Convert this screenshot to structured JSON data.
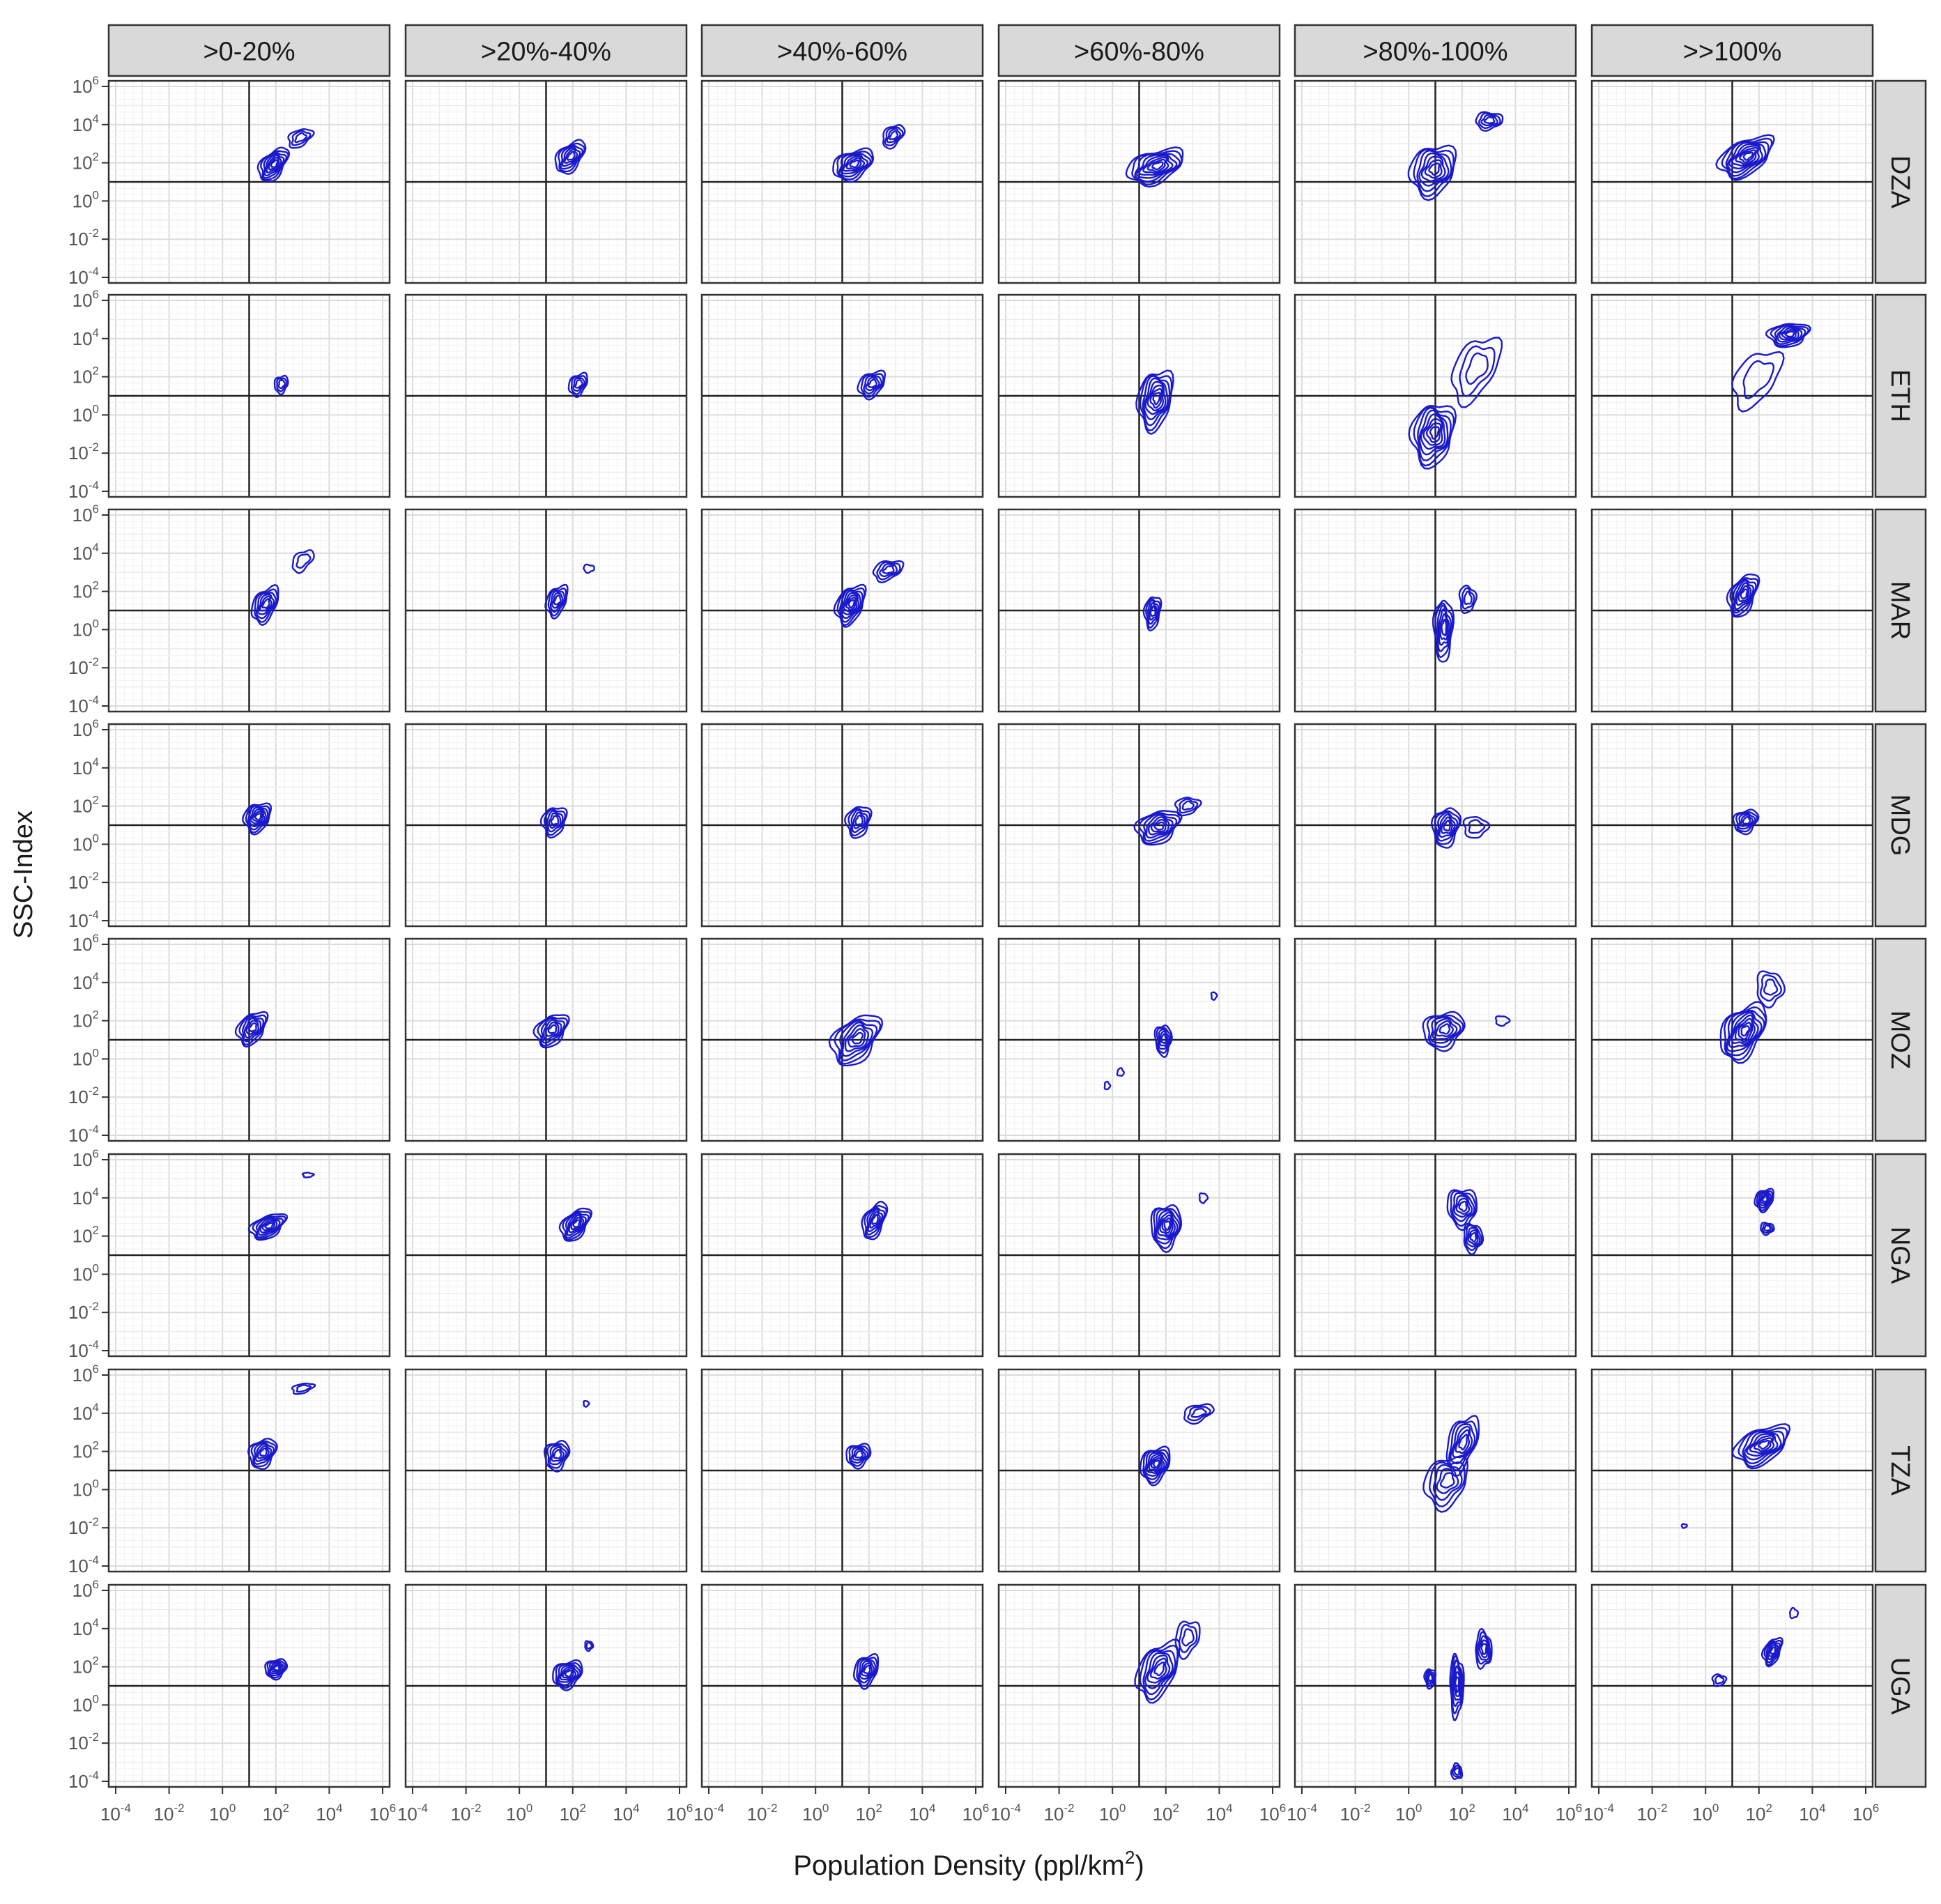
{
  "chart_data": {
    "type": "contour-density-facet-grid",
    "xlabel": {
      "main": "Population Density (ppl/km",
      "sup": "2",
      "close": ")"
    },
    "ylabel": "SSC-Index",
    "scale": "log10",
    "xlim_exp": [
      -4,
      6
    ],
    "ylim_exp": [
      -4,
      6
    ],
    "tick_exponents": [
      -4,
      -2,
      0,
      2,
      4,
      6
    ],
    "tick_base": "10",
    "reference_lines": {
      "x": 10,
      "y": 10
    },
    "grid": true,
    "contour_color": "#1a1acc",
    "columns": [
      ">0-20%",
      ">20%-40%",
      ">40%-60%",
      ">60%-80%",
      ">80%-100%",
      ">>100%"
    ],
    "rows": [
      "DZA",
      "ETH",
      "MAR",
      "MDG",
      "MOZ",
      "NGA",
      "TZA",
      "UGA"
    ],
    "clusters": [
      [
        [
          {
            "x": 1.9,
            "y": 1.9,
            "sx": 0.55,
            "sy": 0.75,
            "r": 0.65,
            "lv": 7
          },
          {
            "x": 2.9,
            "y": 3.3,
            "sx": 0.45,
            "sy": 0.45,
            "r": 0.5,
            "lv": 3
          }
        ],
        [
          {
            "x": 1.9,
            "y": 2.3,
            "sx": 0.55,
            "sy": 0.75,
            "r": 0.6,
            "lv": 6
          }
        ],
        [
          {
            "x": 1.4,
            "y": 1.9,
            "sx": 0.75,
            "sy": 0.75,
            "r": 0.45,
            "lv": 7
          },
          {
            "x": 2.9,
            "y": 3.4,
            "sx": 0.4,
            "sy": 0.55,
            "r": 0.5,
            "lv": 4
          }
        ],
        [
          {
            "x": 1.6,
            "y": 1.8,
            "sx": 1.05,
            "sy": 0.85,
            "r": 0.5,
            "lv": 8
          }
        ],
        [
          {
            "x": 0.9,
            "y": 1.6,
            "sx": 0.85,
            "sy": 1.3,
            "r": 0.25,
            "lv": 7
          },
          {
            "x": 3.0,
            "y": 4.2,
            "sx": 0.5,
            "sy": 0.45,
            "r": 0.1,
            "lv": 4
          }
        ],
        [
          {
            "x": 1.5,
            "y": 2.3,
            "sx": 1.0,
            "sy": 0.95,
            "r": 0.6,
            "lv": 9
          }
        ]
      ],
      [
        [
          {
            "x": 2.2,
            "y": 1.6,
            "sx": 0.25,
            "sy": 0.45,
            "r": 0.2,
            "lv": 3
          }
        ],
        [
          {
            "x": 2.2,
            "y": 1.6,
            "sx": 0.35,
            "sy": 0.55,
            "r": 0.4,
            "lv": 4
          }
        ],
        [
          {
            "x": 2.1,
            "y": 1.6,
            "sx": 0.5,
            "sy": 0.65,
            "r": 0.4,
            "lv": 5
          }
        ],
        [
          {
            "x": 1.6,
            "y": 0.8,
            "sx": 0.65,
            "sy": 1.5,
            "r": 0.3,
            "lv": 8
          }
        ],
        [
          {
            "x": 0.9,
            "y": -1.0,
            "sx": 0.8,
            "sy": 1.6,
            "r": 0.2,
            "lv": 8
          },
          {
            "x": 2.5,
            "y": 2.4,
            "sx": 0.9,
            "sy": 1.5,
            "r": 0.6,
            "lv": 3
          }
        ],
        [
          {
            "x": 3.1,
            "y": 4.2,
            "sx": 0.75,
            "sy": 0.6,
            "r": 0.2,
            "lv": 7
          },
          {
            "x": 1.9,
            "y": 1.9,
            "sx": 0.9,
            "sy": 1.3,
            "r": 0.6,
            "lv": 2
          }
        ]
      ],
      [
        [
          {
            "x": 1.6,
            "y": 1.3,
            "sx": 0.5,
            "sy": 0.85,
            "r": 0.55,
            "lv": 6
          },
          {
            "x": 3.0,
            "y": 3.6,
            "sx": 0.4,
            "sy": 0.5,
            "r": 0.6,
            "lv": 2
          }
        ],
        [
          {
            "x": 1.4,
            "y": 1.5,
            "sx": 0.4,
            "sy": 0.75,
            "r": 0.45,
            "lv": 5
          },
          {
            "x": 2.6,
            "y": 3.2,
            "sx": 0.2,
            "sy": 0.2,
            "r": 0.0,
            "lv": 1
          }
        ],
        [
          {
            "x": 1.3,
            "y": 1.3,
            "sx": 0.55,
            "sy": 0.95,
            "r": 0.45,
            "lv": 8
          },
          {
            "x": 2.7,
            "y": 3.1,
            "sx": 0.55,
            "sy": 0.5,
            "r": 0.4,
            "lv": 4
          }
        ],
        [
          {
            "x": 1.5,
            "y": 0.9,
            "sx": 0.3,
            "sy": 0.85,
            "r": 0.2,
            "lv": 5
          }
        ],
        [
          {
            "x": 1.3,
            "y": 0.0,
            "sx": 0.35,
            "sy": 1.6,
            "r": 0.05,
            "lv": 6
          },
          {
            "x": 2.2,
            "y": 1.6,
            "sx": 0.3,
            "sy": 0.7,
            "r": 0.0,
            "lv": 3
          }
        ],
        [
          {
            "x": 1.4,
            "y": 1.8,
            "sx": 0.55,
            "sy": 1.0,
            "r": 0.55,
            "lv": 7
          }
        ]
      ],
      [
        [
          {
            "x": 1.3,
            "y": 1.4,
            "sx": 0.5,
            "sy": 0.75,
            "r": 0.25,
            "lv": 7
          }
        ],
        [
          {
            "x": 1.3,
            "y": 1.2,
            "sx": 0.45,
            "sy": 0.75,
            "r": 0.2,
            "lv": 5
          }
        ],
        [
          {
            "x": 1.6,
            "y": 1.2,
            "sx": 0.45,
            "sy": 0.8,
            "r": 0.2,
            "lv": 5
          }
        ],
        [
          {
            "x": 1.7,
            "y": 0.9,
            "sx": 0.8,
            "sy": 0.85,
            "r": 0.35,
            "lv": 7
          },
          {
            "x": 2.8,
            "y": 2.0,
            "sx": 0.45,
            "sy": 0.45,
            "r": 0.2,
            "lv": 3
          }
        ],
        [
          {
            "x": 1.4,
            "y": 0.9,
            "sx": 0.5,
            "sy": 1.0,
            "r": 0.2,
            "lv": 6
          },
          {
            "x": 2.5,
            "y": 0.9,
            "sx": 0.45,
            "sy": 0.55,
            "r": 0.0,
            "lv": 2
          }
        ],
        [
          {
            "x": 1.5,
            "y": 1.2,
            "sx": 0.45,
            "sy": 0.6,
            "r": 0.25,
            "lv": 5
          }
        ]
      ],
      [
        [
          {
            "x": 1.1,
            "y": 1.6,
            "sx": 0.55,
            "sy": 0.8,
            "r": 0.45,
            "lv": 6
          }
        ],
        [
          {
            "x": 1.2,
            "y": 1.5,
            "sx": 0.6,
            "sy": 0.8,
            "r": 0.4,
            "lv": 6
          }
        ],
        [
          {
            "x": 1.5,
            "y": 1.0,
            "sx": 0.9,
            "sy": 1.2,
            "r": 0.5,
            "lv": 7
          }
        ],
        [
          {
            "x": 1.9,
            "y": 1.0,
            "sx": 0.3,
            "sy": 0.8,
            "r": 0.0,
            "lv": 5
          },
          {
            "x": 3.8,
            "y": 3.3,
            "sx": 0.1,
            "sy": 0.2,
            "r": 0.0,
            "lv": 1
          },
          {
            "x": -0.2,
            "y": -1.4,
            "sx": 0.1,
            "sy": 0.2,
            "r": 0.0,
            "lv": 1
          },
          {
            "x": 0.3,
            "y": -0.7,
            "sx": 0.12,
            "sy": 0.2,
            "r": 0.0,
            "lv": 1
          }
        ],
        [
          {
            "x": 1.3,
            "y": 1.5,
            "sx": 0.75,
            "sy": 0.95,
            "r": 0.2,
            "lv": 6
          },
          {
            "x": 3.5,
            "y": 2.0,
            "sx": 0.25,
            "sy": 0.25,
            "r": 0.0,
            "lv": 1
          }
        ],
        [
          {
            "x": 1.4,
            "y": 1.4,
            "sx": 0.85,
            "sy": 1.35,
            "r": 0.5,
            "lv": 9
          },
          {
            "x": 2.4,
            "y": 3.7,
            "sx": 0.5,
            "sy": 0.9,
            "r": 0.0,
            "lv": 3
          }
        ]
      ],
      [
        [
          {
            "x": 1.7,
            "y": 2.5,
            "sx": 0.65,
            "sy": 0.6,
            "r": 0.55,
            "lv": 7
          },
          {
            "x": 3.2,
            "y": 5.2,
            "sx": 0.2,
            "sy": 0.12,
            "r": 0.0,
            "lv": 1
          }
        ],
        [
          {
            "x": 2.1,
            "y": 2.6,
            "sx": 0.55,
            "sy": 0.75,
            "r": 0.6,
            "lv": 7
          }
        ],
        [
          {
            "x": 2.2,
            "y": 2.8,
            "sx": 0.45,
            "sy": 0.85,
            "r": 0.6,
            "lv": 6
          }
        ],
        [
          {
            "x": 2.0,
            "y": 2.5,
            "sx": 0.55,
            "sy": 1.15,
            "r": 0.1,
            "lv": 8
          },
          {
            "x": 3.4,
            "y": 4.0,
            "sx": 0.15,
            "sy": 0.25,
            "r": 0.0,
            "lv": 1
          }
        ],
        [
          {
            "x": 2.0,
            "y": 3.5,
            "sx": 0.55,
            "sy": 1.0,
            "r": 0.0,
            "lv": 6
          },
          {
            "x": 2.4,
            "y": 1.9,
            "sx": 0.35,
            "sy": 0.75,
            "r": 0.0,
            "lv": 5
          }
        ],
        [
          {
            "x": 2.2,
            "y": 3.9,
            "sx": 0.35,
            "sy": 0.55,
            "r": 0.3,
            "lv": 6
          },
          {
            "x": 2.3,
            "y": 2.4,
            "sx": 0.25,
            "sy": 0.3,
            "r": 0.0,
            "lv": 3
          }
        ]
      ],
      [
        [
          {
            "x": 1.5,
            "y": 1.9,
            "sx": 0.5,
            "sy": 0.75,
            "r": 0.3,
            "lv": 6
          },
          {
            "x": 3.0,
            "y": 5.3,
            "sx": 0.4,
            "sy": 0.25,
            "r": 0.5,
            "lv": 2
          }
        ],
        [
          {
            "x": 1.4,
            "y": 1.8,
            "sx": 0.45,
            "sy": 0.75,
            "r": 0.2,
            "lv": 5
          },
          {
            "x": 2.5,
            "y": 4.5,
            "sx": 0.1,
            "sy": 0.15,
            "r": 0.0,
            "lv": 1
          }
        ],
        [
          {
            "x": 1.6,
            "y": 1.8,
            "sx": 0.45,
            "sy": 0.6,
            "r": 0.2,
            "lv": 5
          }
        ],
        [
          {
            "x": 1.6,
            "y": 1.3,
            "sx": 0.55,
            "sy": 0.9,
            "r": 0.3,
            "lv": 8
          },
          {
            "x": 3.2,
            "y": 4.0,
            "sx": 0.55,
            "sy": 0.45,
            "r": 0.5,
            "lv": 3
          }
        ],
        [
          {
            "x": 1.4,
            "y": 0.4,
            "sx": 0.8,
            "sy": 1.3,
            "r": 0.3,
            "lv": 5
          },
          {
            "x": 2.0,
            "y": 2.4,
            "sx": 0.6,
            "sy": 1.3,
            "r": 0.6,
            "lv": 6
          }
        ],
        [
          {
            "x": 2.1,
            "y": 2.3,
            "sx": 1.0,
            "sy": 0.95,
            "r": 0.55,
            "lv": 8
          },
          {
            "x": -0.8,
            "y": -1.9,
            "sx": 0.1,
            "sy": 0.1,
            "r": 0.0,
            "lv": 1
          }
        ]
      ],
      [
        [
          {
            "x": 2.0,
            "y": 1.9,
            "sx": 0.4,
            "sy": 0.5,
            "r": 0.2,
            "lv": 6
          }
        ],
        [
          {
            "x": 1.8,
            "y": 1.6,
            "sx": 0.55,
            "sy": 0.7,
            "r": 0.3,
            "lv": 7
          },
          {
            "x": 2.6,
            "y": 3.1,
            "sx": 0.15,
            "sy": 0.25,
            "r": 0.0,
            "lv": 2
          }
        ],
        [
          {
            "x": 1.9,
            "y": 1.8,
            "sx": 0.45,
            "sy": 0.8,
            "r": 0.35,
            "lv": 6
          }
        ],
        [
          {
            "x": 1.7,
            "y": 1.8,
            "sx": 0.8,
            "sy": 1.35,
            "r": 0.55,
            "lv": 7
          },
          {
            "x": 2.8,
            "y": 3.5,
            "sx": 0.45,
            "sy": 0.9,
            "r": 0.3,
            "lv": 3
          }
        ],
        [
          {
            "x": 0.8,
            "y": 1.4,
            "sx": 0.2,
            "sy": 0.5,
            "r": 0.0,
            "lv": 4
          },
          {
            "x": 1.8,
            "y": 1.0,
            "sx": 0.25,
            "sy": 1.6,
            "r": 0.0,
            "lv": 6
          },
          {
            "x": 2.8,
            "y": 2.9,
            "sx": 0.3,
            "sy": 0.95,
            "r": 0.0,
            "lv": 5
          },
          {
            "x": 1.8,
            "y": -3.5,
            "sx": 0.2,
            "sy": 0.4,
            "r": 0.0,
            "lv": 3
          }
        ],
        [
          {
            "x": 2.5,
            "y": 2.8,
            "sx": 0.35,
            "sy": 0.65,
            "r": 0.5,
            "lv": 6
          },
          {
            "x": 0.5,
            "y": 1.3,
            "sx": 0.25,
            "sy": 0.3,
            "r": 0.0,
            "lv": 2
          },
          {
            "x": 3.3,
            "y": 4.8,
            "sx": 0.15,
            "sy": 0.25,
            "r": 0.0,
            "lv": 1
          }
        ]
      ]
    ]
  }
}
